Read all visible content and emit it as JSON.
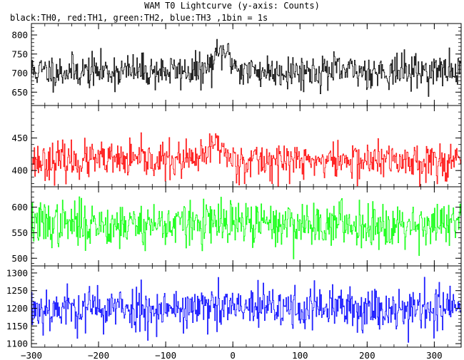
{
  "chart_data": [
    {
      "type": "line",
      "title": "WAM T0 Lightcurve (y-axis: Counts)",
      "subtitle": "black:TH0, red:TH1, green:TH2, blue:TH3 ,1bin = 1s",
      "x_range": [
        -300,
        340
      ],
      "x_ticks": [
        -300,
        -200,
        -100,
        0,
        100,
        200,
        300
      ],
      "x_tick_labels": [
        "−300",
        "−200",
        "−100",
        "0",
        "100",
        "200",
        "300"
      ],
      "panels": [
        {
          "series_name": "TH0",
          "color": "#000000",
          "ylim": [
            615,
            830
          ],
          "y_ticks": [
            650,
            700,
            750,
            800
          ],
          "baseline": 705,
          "noise_sd": 22,
          "peak": {
            "center": -15,
            "width": 12,
            "height": 50
          },
          "seed": 11
        },
        {
          "series_name": "TH1",
          "color": "#ff0000",
          "ylim": [
            375,
            500
          ],
          "y_ticks": [
            400,
            450
          ],
          "baseline": 415,
          "noise_sd": 14,
          "peak": {
            "center": -25,
            "width": 10,
            "height": 28
          },
          "seed": 23
        },
        {
          "series_name": "TH2",
          "color": "#00ff00",
          "ylim": [
            485,
            640
          ],
          "y_ticks": [
            500,
            550,
            600
          ],
          "baseline": 567,
          "noise_sd": 22,
          "peak": {
            "center": 0,
            "width": 10,
            "height": 0
          },
          "seed": 37
        },
        {
          "series_name": "TH3",
          "color": "#0000ff",
          "ylim": [
            1090,
            1320
          ],
          "y_ticks": [
            1100,
            1150,
            1200,
            1250,
            1300
          ],
          "baseline": 1200,
          "noise_sd": 32,
          "peak": {
            "center": 0,
            "width": 10,
            "height": 0
          },
          "seed": 53
        }
      ]
    }
  ]
}
